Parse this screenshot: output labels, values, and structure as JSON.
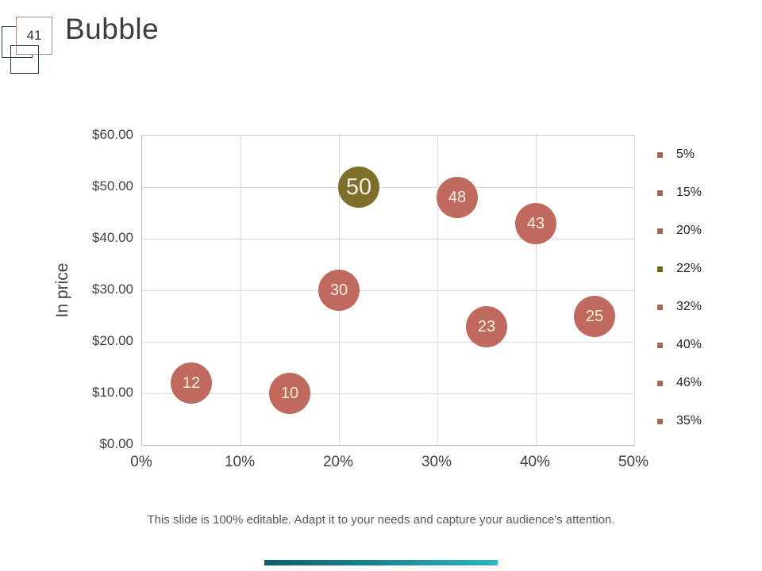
{
  "slide": {
    "page_number": "41",
    "title": "Bubble",
    "footer": "This slide is 100% editable. Adapt it to your needs and capture your audience's attention."
  },
  "colors": {
    "bubble_red": "#c0695e",
    "bubble_olive": "#7d6e2c",
    "legend_red": "#a2695e",
    "legend_olive": "#6f6626",
    "badge_border": "#b5897b",
    "decor_square_border": "#2f3e4e",
    "accent_bar_start": "#0d5f6b",
    "accent_bar_end": "#33b3c4"
  },
  "chart_data": {
    "type": "scatter",
    "subtype": "bubble",
    "title": "",
    "xlabel": "",
    "ylabel": "In price",
    "xlim": [
      0,
      50
    ],
    "ylim": [
      0,
      60
    ],
    "grid": true,
    "legend_position": "right",
    "x_ticks": [
      "0%",
      "10%",
      "20%",
      "30%",
      "40%",
      "50%"
    ],
    "y_ticks": [
      "$0.00",
      "$10.00",
      "$20.00",
      "$30.00",
      "$40.00",
      "$50.00",
      "$60.00"
    ],
    "points": [
      {
        "series": "5%",
        "x_pct": 5,
        "price": 12,
        "size": 12,
        "label": "12",
        "color": "#c0695e",
        "emphasis": false
      },
      {
        "series": "15%",
        "x_pct": 15,
        "price": 10,
        "size": 10,
        "label": "10",
        "color": "#c0695e",
        "emphasis": false
      },
      {
        "series": "20%",
        "x_pct": 20,
        "price": 30,
        "size": 30,
        "label": "30",
        "color": "#c0695e",
        "emphasis": false
      },
      {
        "series": "22%",
        "x_pct": 22,
        "price": 50,
        "size": 50,
        "label": "50",
        "color": "#7d6e2c",
        "emphasis": true
      },
      {
        "series": "32%",
        "x_pct": 32,
        "price": 48,
        "size": 48,
        "label": "48",
        "color": "#c0695e",
        "emphasis": false
      },
      {
        "series": "40%",
        "x_pct": 40,
        "price": 43,
        "size": 43,
        "label": "43",
        "color": "#c0695e",
        "emphasis": false
      },
      {
        "series": "46%",
        "x_pct": 46,
        "price": 25,
        "size": 25,
        "label": "25",
        "color": "#c0695e",
        "emphasis": false
      },
      {
        "series": "35%",
        "x_pct": 35,
        "price": 23,
        "size": 23,
        "label": "23",
        "color": "#c0695e",
        "emphasis": false
      }
    ],
    "legend": [
      {
        "label": "5%",
        "color": "#a2695e"
      },
      {
        "label": "15%",
        "color": "#a2695e"
      },
      {
        "label": "20%",
        "color": "#a2695e"
      },
      {
        "label": "22%",
        "color": "#6f6626"
      },
      {
        "label": "32%",
        "color": "#a2695e"
      },
      {
        "label": "40%",
        "color": "#a2695e"
      },
      {
        "label": "46%",
        "color": "#a2695e"
      },
      {
        "label": "35%",
        "color": "#a2695e"
      }
    ]
  }
}
